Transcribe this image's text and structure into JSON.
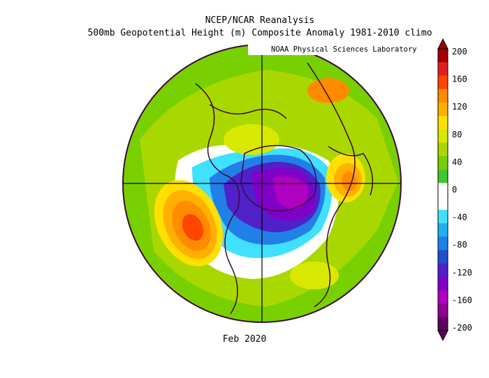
{
  "header": {
    "title_line1": "NCEP/NCAR Reanalysis",
    "title_line2": "500mb Geopotential Height (m) Composite Anomaly 1981-2010 climo",
    "credit": "NOAA Physical Sciences Laboratory"
  },
  "footer": {
    "date_label": "Feb 2020"
  },
  "colorbar": {
    "ticks": [
      "200",
      "160",
      "120",
      "80",
      "40",
      "0",
      "-40",
      "-80",
      "-120",
      "-160",
      "-200"
    ],
    "colors": [
      "#a00000",
      "#e02020",
      "#ff4500",
      "#ff8c00",
      "#ffb000",
      "#ffe000",
      "#d8e800",
      "#a8d800",
      "#78d000",
      "#40c830",
      "#ffffff",
      "#ffffff",
      "#40e0ff",
      "#20b0f0",
      "#2080e8",
      "#2050d0",
      "#5020c8",
      "#8000c8",
      "#b000c0",
      "#900090",
      "#600060"
    ],
    "colors_note_omit": true
  },
  "map": {
    "projection": "north-polar-stereographic",
    "anomaly_features": [
      {
        "sign": "negative",
        "region": "Arctic / Greenland",
        "min_m": -140
      },
      {
        "sign": "positive",
        "region": "North Pacific",
        "max_m": 170
      },
      {
        "sign": "positive",
        "region": "Europe / Russia",
        "max_m": 130
      },
      {
        "sign": "positive",
        "region": "Eurasia subtropics",
        "max_m": 80
      }
    ]
  }
}
